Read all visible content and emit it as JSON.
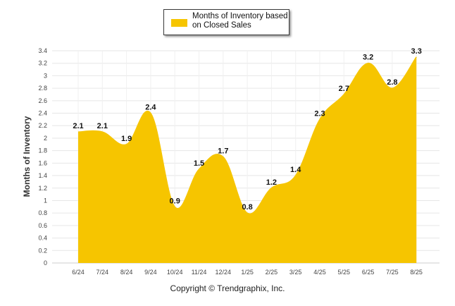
{
  "chart_data": {
    "type": "area",
    "categories": [
      "6/24",
      "7/24",
      "8/24",
      "9/24",
      "10/24",
      "11/24",
      "12/24",
      "1/25",
      "2/25",
      "3/25",
      "4/25",
      "5/25",
      "6/25",
      "7/25",
      "8/25"
    ],
    "series": [
      {
        "name": "Months of Inventory based on Closed Sales",
        "values": [
          2.1,
          2.1,
          1.9,
          2.4,
          0.9,
          1.5,
          1.7,
          0.8,
          1.2,
          1.4,
          2.3,
          2.7,
          3.2,
          2.8,
          3.3
        ]
      }
    ],
    "ylabel": "Months of Inventory",
    "xlabel": "",
    "ylim": [
      0,
      3.4
    ],
    "yticks": [
      "0",
      "0.2",
      "0.4",
      "0.6",
      "0.8",
      "1",
      "1.2",
      "1.4",
      "1.6",
      "1.8",
      "2",
      "2.2",
      "2.4",
      "2.6",
      "2.8",
      "3",
      "3.2",
      "3.4"
    ],
    "grid": true,
    "legend_position": "top-center",
    "color": "#f6c500"
  },
  "legend": {
    "label": "Months of Inventory based on Closed Sales",
    "color": "#f6c500"
  },
  "footer": {
    "copyright": "Copyright © Trendgraphix, Inc."
  }
}
